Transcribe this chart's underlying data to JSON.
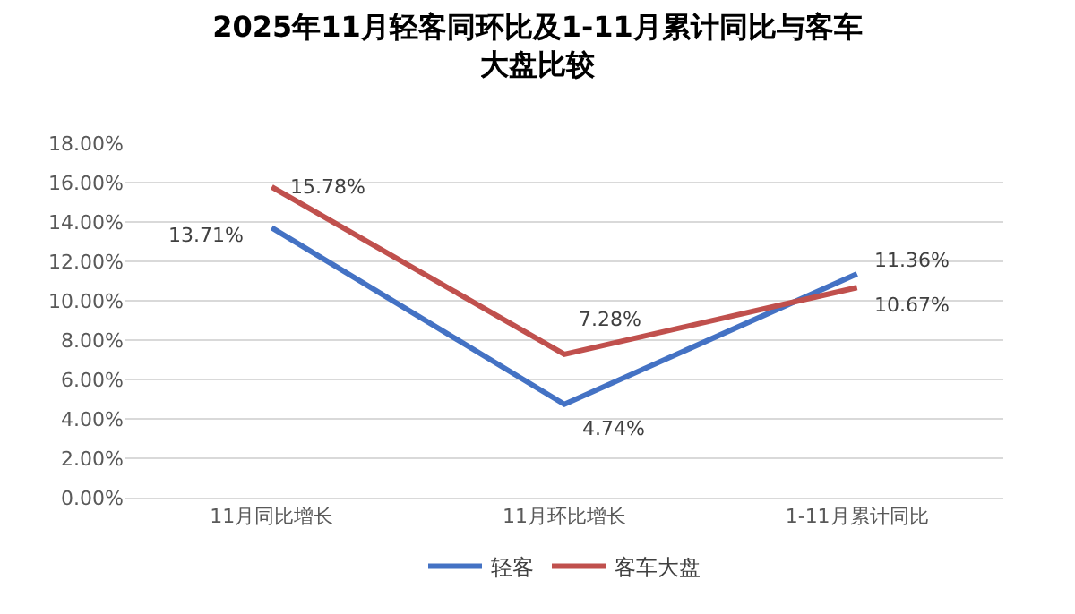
{
  "chart_data": {
    "type": "line",
    "title": "2025年11月轻客同环比及1-11月累计同比与客车大盘比较",
    "categories": [
      "11月同比增长",
      "11月环比增长",
      "1-11月累计同比"
    ],
    "series": [
      {
        "name": "轻客",
        "color": "#4472c4",
        "values": [
          13.71,
          4.74,
          11.36
        ],
        "value_labels": [
          "13.71%",
          "4.74%",
          "11.36%"
        ]
      },
      {
        "name": "客车大盘",
        "color": "#c0504d",
        "values": [
          15.78,
          7.28,
          10.67
        ],
        "value_labels": [
          "15.78%",
          "7.28%",
          "10.67%"
        ]
      }
    ],
    "ylim": [
      0,
      18
    ],
    "yticks": [
      {
        "value": 0,
        "label": "0.00%"
      },
      {
        "value": 2,
        "label": "2.00%"
      },
      {
        "value": 4,
        "label": "4.00%"
      },
      {
        "value": 6,
        "label": "6.00%"
      },
      {
        "value": 8,
        "label": "8.00%"
      },
      {
        "value": 10,
        "label": "10.00%"
      },
      {
        "value": 12,
        "label": "12.00%"
      },
      {
        "value": 14,
        "label": "14.00%"
      },
      {
        "value": 16,
        "label": "16.00%"
      },
      {
        "value": 18,
        "label": "18.00%"
      }
    ],
    "grid": "y",
    "legend": "bottom",
    "marker": "none",
    "line_style": "solid"
  }
}
